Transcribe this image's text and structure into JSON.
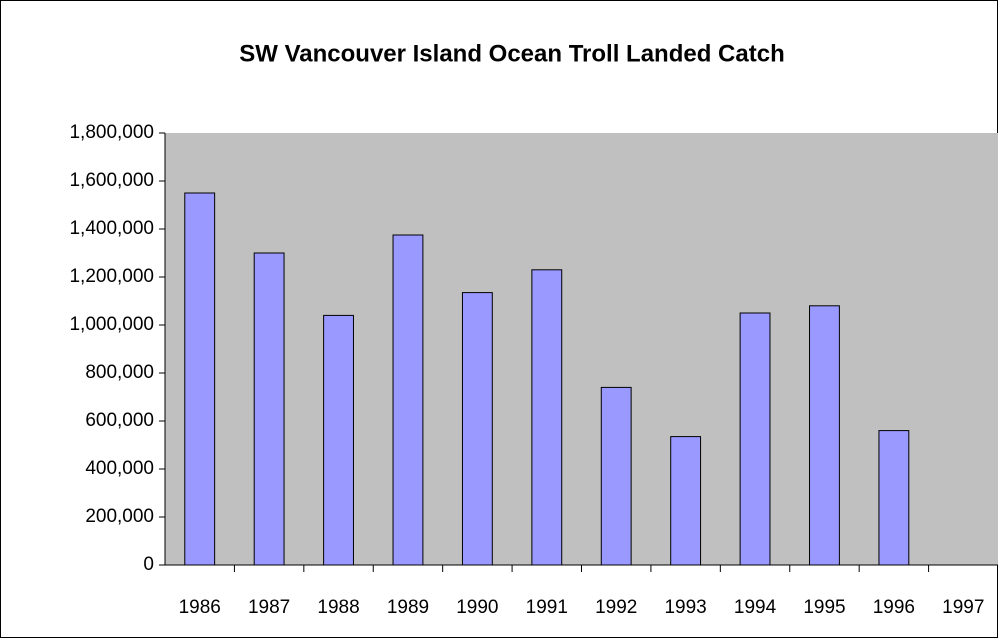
{
  "chart_data": {
    "type": "bar",
    "title": "SW Vancouver Island Ocean Troll Landed Catch",
    "categories": [
      "1986",
      "1987",
      "1988",
      "1989",
      "1990",
      "1991",
      "1992",
      "1993",
      "1994",
      "1995",
      "1996",
      "1997"
    ],
    "values": [
      1550000,
      1300000,
      1040000,
      1375000,
      1135000,
      1230000,
      740000,
      535000,
      1050000,
      1080000,
      560000,
      null
    ],
    "color": "#9999ff",
    "plot_background": "#c0c0c0",
    "ylim": [
      0,
      1800000
    ],
    "yticks": [
      0,
      {
        "value": 200000,
        "label": "200,000"
      },
      {
        "value": 400000,
        "label": "400,000"
      },
      {
        "value": 600000,
        "label": "600,000"
      },
      {
        "value": 800000,
        "label": "800,000"
      },
      {
        "value": 1000000,
        "label": "1,000,000"
      },
      {
        "value": 1200000,
        "label": "1,200,000"
      },
      {
        "value": 1400000,
        "label": "1,400,000"
      },
      {
        "value": 1600000,
        "label": "1,600,000"
      },
      {
        "value": 1800000,
        "label": "1,800,000"
      }
    ],
    "grid": false
  }
}
